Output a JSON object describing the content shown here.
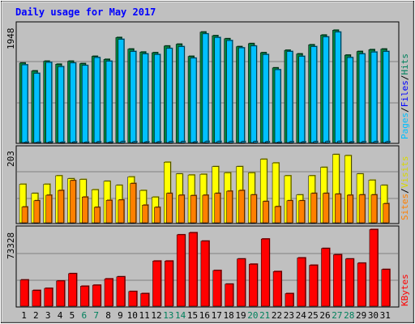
{
  "chart_data": {
    "type": "bar",
    "title": "Daily usage for May 2017",
    "days": [
      "1",
      "2",
      "3",
      "4",
      "5",
      "6",
      "7",
      "8",
      "9",
      "10",
      "11",
      "12",
      "13",
      "14",
      "15",
      "16",
      "17",
      "18",
      "19",
      "20",
      "21",
      "22",
      "23",
      "24",
      "25",
      "26",
      "27",
      "28",
      "29",
      "30",
      "31"
    ],
    "weekend_days": [
      "6",
      "7",
      "13",
      "14",
      "20",
      "21",
      "27",
      "28"
    ],
    "panels": [
      {
        "id": "hits",
        "max_label": "1948",
        "ymax": 1948,
        "legend": [
          "Pages",
          "Files",
          "Hits"
        ],
        "series": [
          {
            "name": "Hits",
            "values": [
              1310,
              1180,
              1340,
              1290,
              1340,
              1300,
              1420,
              1370,
              1730,
              1540,
              1490,
              1480,
              1590,
              1620,
              1420,
              1820,
              1760,
              1710,
              1580,
              1630,
              1480,
              1230,
              1520,
              1460,
              1610,
              1770,
              1850,
              1440,
              1500,
              1530,
              1540
            ]
          },
          {
            "name": "Files",
            "values": [
              1280,
              1140,
              1320,
              1250,
              1310,
              1270,
              1400,
              1340,
              1700,
              1500,
              1460,
              1450,
              1550,
              1580,
              1390,
              1790,
              1730,
              1680,
              1560,
              1590,
              1450,
              1200,
              1500,
              1420,
              1580,
              1740,
              1820,
              1400,
              1460,
              1490,
              1500
            ]
          },
          {
            "name": "Pages",
            "values": [
              10,
              8,
              12,
              10,
              12,
              9,
              14,
              11,
              18,
              15,
              13,
              13,
              16,
              17,
              12,
              20,
              19,
              18,
              16,
              17,
              14,
              9,
              15,
              13,
              16,
              19,
              21,
              13,
              15,
              16,
              15
            ]
          }
        ],
        "colors": {
          "Hits": "#008040",
          "Files": "#00c0ff",
          "Pages": "#00c0ff"
        }
      },
      {
        "id": "visits",
        "max_label": "203",
        "ymax": 203,
        "legend": [
          "Sites",
          "Visits"
        ],
        "series": [
          {
            "name": "Visits",
            "values": [
              105,
              80,
              105,
              128,
              120,
              118,
              90,
              113,
              102,
              125,
              88,
              70,
              165,
              133,
              130,
              132,
              153,
              136,
              153,
              136,
              173,
              163,
              128,
              76,
              128,
              151,
              186,
              183,
              133,
              116,
              102
            ]
          },
          {
            "name": "Sites",
            "values": [
              43,
              60,
              75,
              88,
              115,
              70,
              42,
              61,
              62,
              107,
              48,
              42,
              80,
              75,
              74,
              75,
              80,
              86,
              88,
              76,
              58,
              44,
              60,
              60,
              80,
              80,
              78,
              75,
              76,
              76,
              52
            ]
          }
        ],
        "colors": {
          "Visits": "#ffff00",
          "Sites": "#ff8000"
        }
      },
      {
        "id": "kbytes",
        "max_label": "73328",
        "ymax": 73328,
        "legend": [
          "KBytes"
        ],
        "series": [
          {
            "name": "KBytes",
            "values": [
              25000,
              15000,
              17000,
              24000,
              31000,
              19000,
              20000,
              26000,
              28000,
              14000,
              12000,
              43000,
              43000,
              68000,
              70000,
              62000,
              34000,
              21000,
              45000,
              40000,
              64000,
              33000,
              12000,
              46000,
              39000,
              55000,
              49000,
              45000,
              41000,
              73000,
              35000
            ]
          }
        ],
        "colors": {
          "KBytes": "#ff0000"
        }
      }
    ],
    "grid": true,
    "background": "#c0c0c0",
    "title_color": "#0000ff",
    "weekend_color": "#00805c"
  }
}
